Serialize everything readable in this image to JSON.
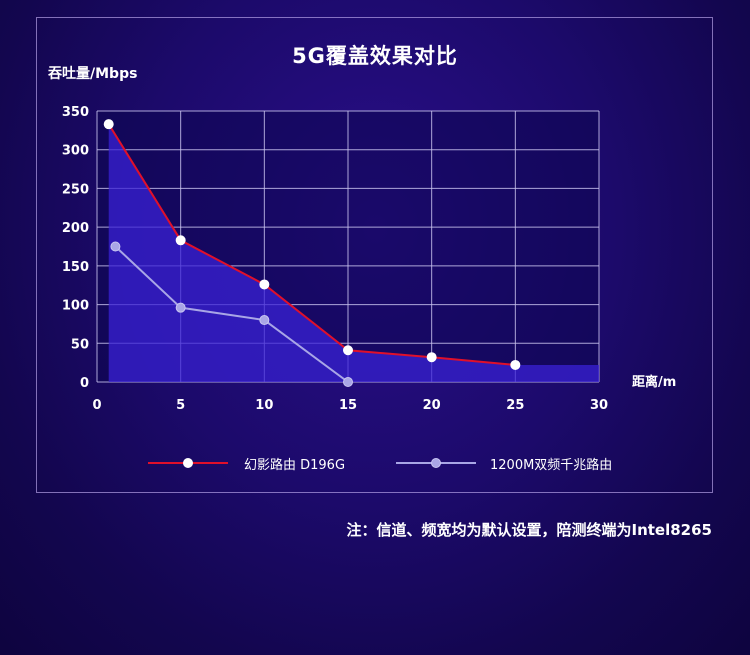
{
  "chart_data": {
    "type": "line",
    "title": "5G覆盖效果对比",
    "ylabel": "吞吐量/Mbps",
    "xlabel": "距离/m",
    "xlim": [
      0,
      30
    ],
    "ylim": [
      0,
      350
    ],
    "x_ticks": [
      "0",
      "5",
      "10",
      "15",
      "20",
      "25",
      "30"
    ],
    "y_ticks": [
      "0",
      "50",
      "100",
      "150",
      "200",
      "250",
      "300",
      "350"
    ],
    "grid": true,
    "legend_position": "bottom",
    "series": [
      {
        "name": "幻影路由 D196G",
        "color": "#e0102a",
        "fill": true,
        "points": [
          [
            0.7,
            333
          ],
          [
            5,
            183
          ],
          [
            10,
            126
          ],
          [
            15,
            41
          ],
          [
            20,
            32
          ],
          [
            25,
            22
          ],
          [
            30,
            22
          ]
        ],
        "markers": [
          0,
          1,
          2,
          3,
          4,
          5
        ]
      },
      {
        "name": "1200M双频千兆路由",
        "color": "#a9a6e6",
        "fill": false,
        "points": [
          [
            1.1,
            175
          ],
          [
            5,
            96
          ],
          [
            10,
            80
          ],
          [
            15,
            0
          ]
        ],
        "markers": [
          0,
          1,
          2,
          3
        ]
      }
    ]
  },
  "footnote": "注：信道、频宽均为默认设置，陪测终端为Intel8265"
}
